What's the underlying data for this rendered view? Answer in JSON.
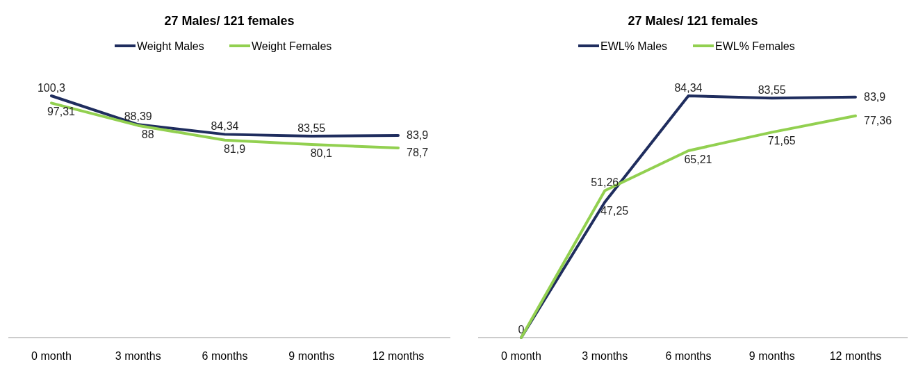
{
  "chart_data": [
    {
      "type": "line",
      "title": "27 Males/ 121 females",
      "categories": [
        "0 month",
        "3 months",
        "6 months",
        "9 months",
        "12 months"
      ],
      "tick_labels": "x",
      "legend": "top",
      "series": [
        {
          "name": "Weight Males",
          "color": "#1f2d5e",
          "values": [
            100.3,
            88.39,
            84.34,
            83.55,
            83.9
          ],
          "value_labels": [
            "100,3",
            "88,39",
            "84,34",
            "83,55",
            "83,9"
          ]
        },
        {
          "name": "Weight Females",
          "color": "#92d050",
          "values": [
            97.31,
            88,
            81.9,
            80.1,
            78.7
          ],
          "value_labels": [
            "97,31",
            "88",
            "81,9",
            "80,1",
            "78,7"
          ]
        }
      ]
    },
    {
      "type": "line",
      "title": "27 Males/ 121 females",
      "categories": [
        "0 month",
        "3 months",
        "6 months",
        "9 months",
        "12 months"
      ],
      "tick_labels": "x",
      "legend": "top",
      "series": [
        {
          "name": "EWL% Males",
          "color": "#1f2d5e",
          "values": [
            0,
            47.25,
            84.34,
            83.55,
            83.9
          ],
          "value_labels": [
            "0",
            "47,25",
            "84,34",
            "83,55",
            "83,9"
          ]
        },
        {
          "name": "EWL% Females",
          "color": "#92d050",
          "values": [
            0,
            51.26,
            65.21,
            71.65,
            77.36
          ],
          "value_labels": [
            null,
            "51,26",
            "65,21",
            "71,65",
            "77,36"
          ]
        }
      ]
    }
  ]
}
